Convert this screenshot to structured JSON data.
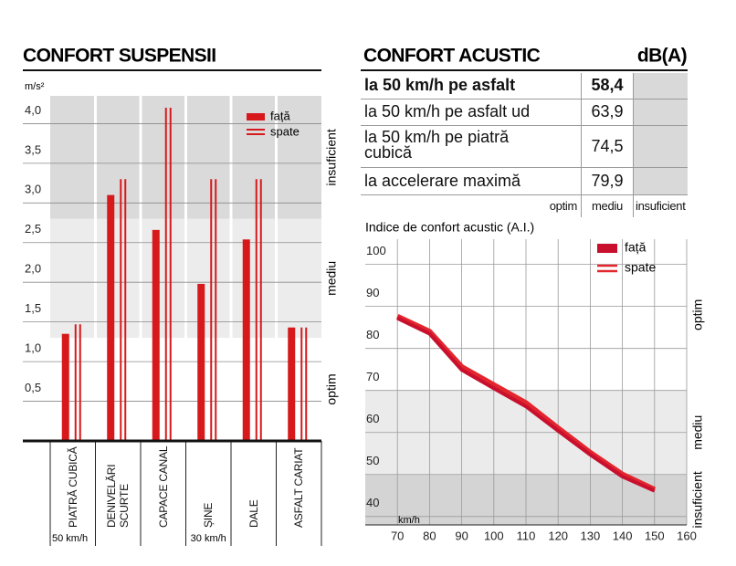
{
  "chart_data": [
    {
      "type": "bar",
      "title": "CONFORT SUSPENSII",
      "unit": "m/s²",
      "categories": [
        "PIATRĂ CUBICĂ",
        "DENIVELĂRI SCURTE",
        "CAPACE CANAL",
        "ȘINE",
        "DALE",
        "ASFALT CARIAT"
      ],
      "series": [
        {
          "name": "față",
          "color": "#d7191c",
          "style": "solid",
          "values": [
            1.35,
            3.1,
            2.66,
            1.98,
            2.54,
            1.43
          ]
        },
        {
          "name": "spate",
          "color": "#d7191c",
          "style": "double",
          "values": [
            1.47,
            3.3,
            4.2,
            3.3,
            3.3,
            1.43
          ]
        }
      ],
      "ylim": [
        0,
        4.35
      ],
      "yticks": [
        {
          "value": 0.5,
          "label": "0,5"
        },
        {
          "value": 1,
          "label": "1,0"
        },
        {
          "value": 1.5,
          "label": "1,5"
        },
        {
          "value": 2,
          "label": "2,0"
        },
        {
          "value": 2.5,
          "label": "2,5"
        },
        {
          "value": 3,
          "label": "3,0"
        },
        {
          "value": 3.5,
          "label": "3,5"
        },
        {
          "value": 4,
          "label": "4,0"
        }
      ],
      "grid": true,
      "zones": [
        {
          "label": "optim",
          "from": 0,
          "to": 1.3,
          "color": "#ffffff"
        },
        {
          "label": "mediu",
          "from": 1.3,
          "to": 2.8,
          "color": "#ececec"
        },
        {
          "label": "insuficient",
          "from": 2.8,
          "to": 4.35,
          "color": "#dadada"
        }
      ],
      "speed_groups": [
        {
          "label": "50 km/h",
          "span": 1
        },
        {
          "label": "30 km/h",
          "span": 5
        }
      ]
    },
    {
      "type": "line",
      "title": "Indice de confort acustic  (A.I.)",
      "x_label": "km/h",
      "x": [
        70,
        80,
        90,
        100,
        110,
        120,
        130,
        140,
        150
      ],
      "series": [
        {
          "name": "față",
          "color": "#c8102e",
          "style": "solid",
          "values": [
            87.2,
            83.5,
            74.9,
            70.5,
            66.2,
            60.4,
            54.7,
            49.5,
            46.1
          ]
        },
        {
          "name": "spate",
          "color": "#e3262e",
          "style": "double",
          "values": [
            87.6,
            84,
            75.6,
            71.3,
            67,
            61,
            55.2,
            50,
            46.4
          ]
        }
      ],
      "xlim": [
        60,
        160
      ],
      "xticks": [
        70,
        80,
        90,
        100,
        110,
        120,
        130,
        140,
        150,
        160
      ],
      "ylim": [
        38,
        106
      ],
      "yticks": [
        40,
        50,
        60,
        70,
        80,
        90,
        100
      ],
      "grid": true,
      "zones": [
        {
          "label": "optim",
          "from": 70,
          "to": 106,
          "color": "#ffffff"
        },
        {
          "label": "mediu",
          "from": 50,
          "to": 70,
          "color": "#ebebeb"
        },
        {
          "label": "insuficient",
          "from": 38,
          "to": 50,
          "color": "#d4d4d4"
        }
      ]
    }
  ],
  "table": {
    "title": "CONFORT ACUSTIC",
    "unit": "dB(A)",
    "rows": [
      [
        "la 50 km/h pe asfalt",
        "58,4"
      ],
      [
        "la 50 km/h pe asfalt ud",
        "63,9"
      ],
      [
        "la 50 km/h pe piatră cubică",
        "74,5"
      ],
      [
        "la accelerare maximă",
        "79,9"
      ]
    ],
    "columns": [
      "optim",
      "mediu",
      "insuficient"
    ]
  }
}
